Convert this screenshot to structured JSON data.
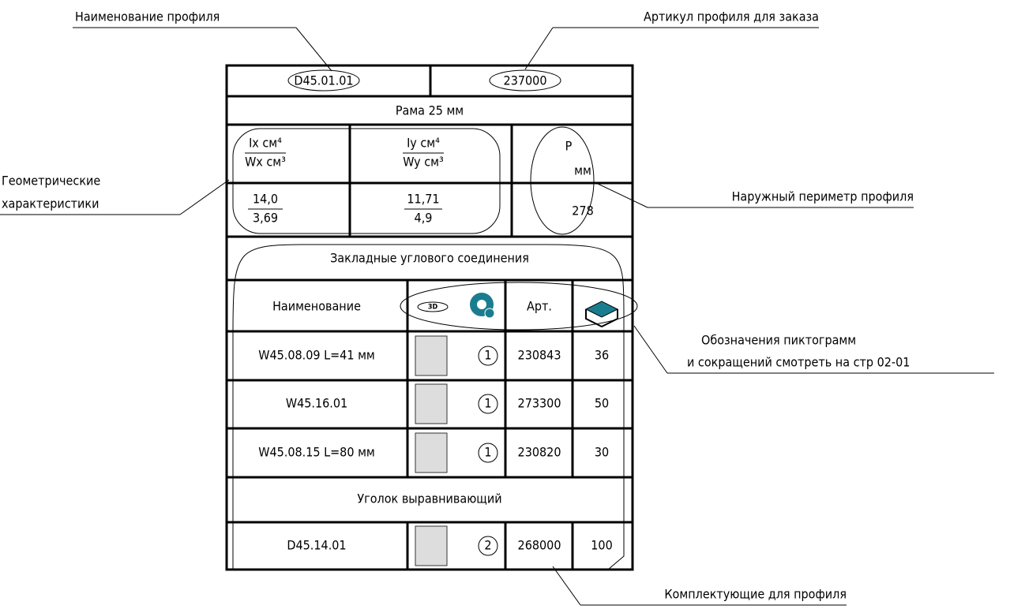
{
  "annotations": {
    "profile_name": "Наименование профиля",
    "article": "Артикул профиля для заказа",
    "geometric": [
      "Геометрические",
      "характеристики"
    ],
    "perimeter": "Наружный периметр профиля",
    "pictograms": [
      "Обозначения пиктограмм",
      "и сокращений смотреть на стр 02-01"
    ],
    "accessories": "Комплектующие для профиля"
  },
  "table": {
    "code": "D45.01.01",
    "article": "237000",
    "title": "Рама 25 мм",
    "properties": [
      {
        "top": "Ix см⁴",
        "bottom": "Wx см³",
        "value_top": "14,0",
        "value_bottom": "3,69"
      },
      {
        "top": "Iy см⁴",
        "bottom": "Wy см³",
        "value_top": "11,71",
        "value_bottom": "4,9"
      }
    ],
    "perimeter": {
      "top": "P",
      "bottom": "мм",
      "value": "278"
    },
    "section1": "Закладные углового соединения",
    "header": {
      "name": "Наименование",
      "icon_3d": "3D",
      "article": "Арт."
    },
    "rows": [
      {
        "name": "W45.08.09 L=41 мм",
        "qty": "1",
        "article": "230843",
        "pack": "36"
      },
      {
        "name": "W45.16.01",
        "qty": "1",
        "article": "273300",
        "pack": "50"
      },
      {
        "name": "W45.08.15 L=80 мм",
        "qty": "1",
        "article": "230820",
        "pack": "30"
      }
    ],
    "section2": "Уголок выравнивающий",
    "row2": {
      "name": "D45.14.01",
      "qty": "2",
      "article": "268000",
      "pack": "100"
    }
  }
}
